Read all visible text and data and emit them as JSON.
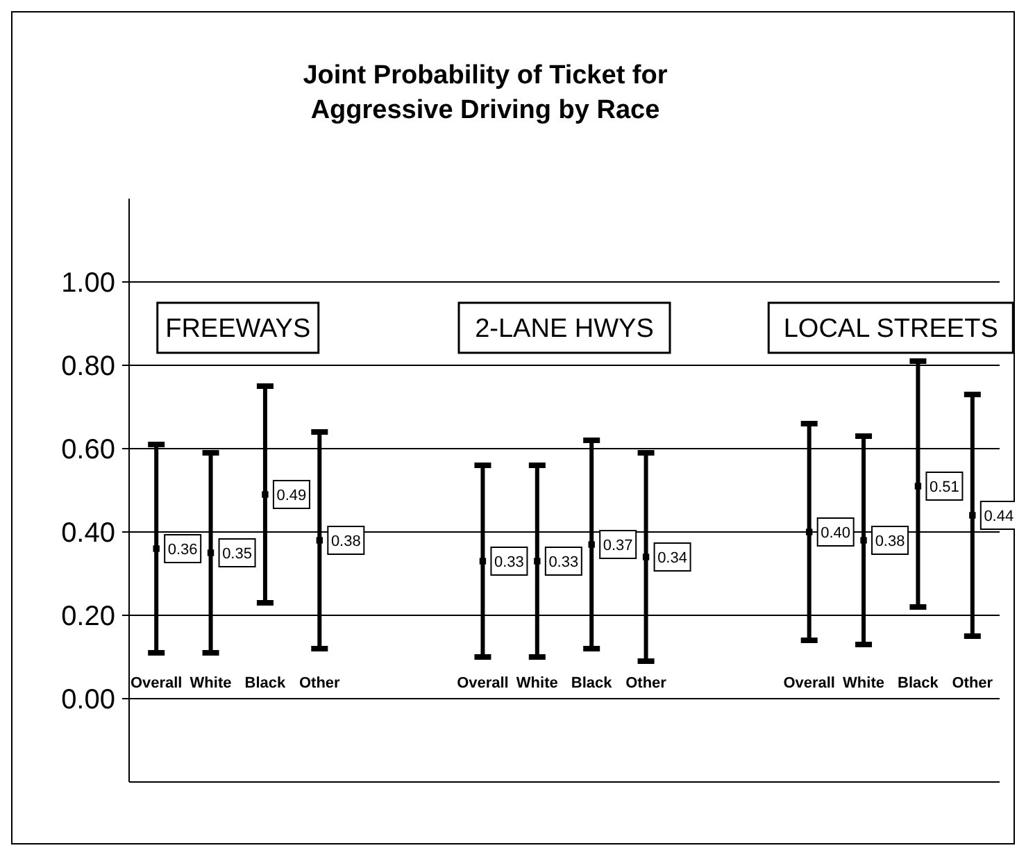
{
  "chart_data": {
    "type": "scatter",
    "title": "Joint Probability of Ticket for\nAggressive Driving by Race",
    "categories": [
      "Overall",
      "White",
      "Black",
      "Other",
      null,
      null,
      "Overall",
      "White",
      "Black",
      "Other",
      null,
      null,
      "Overall",
      "White",
      "Black",
      "Other"
    ],
    "values": [
      0.36,
      0.35,
      0.49,
      0.38,
      null,
      null,
      0.33,
      0.33,
      0.37,
      0.34,
      null,
      null,
      0.4,
      0.38,
      0.51,
      0.44
    ],
    "errors": [
      [
        0.11,
        0.61
      ],
      [
        0.11,
        0.59
      ],
      [
        0.23,
        0.75
      ],
      [
        0.12,
        0.64
      ],
      null,
      null,
      [
        0.1,
        0.56
      ],
      [
        0.1,
        0.56
      ],
      [
        0.12,
        0.62
      ],
      [
        0.09,
        0.59
      ],
      null,
      null,
      [
        0.14,
        0.66
      ],
      [
        0.13,
        0.63
      ],
      [
        0.22,
        0.81
      ],
      [
        0.15,
        0.73
      ]
    ],
    "value_labels": [
      "0.36",
      "0.35",
      "0.49",
      "0.38",
      null,
      null,
      "0.33",
      "0.33",
      "0.37",
      "0.34",
      null,
      null,
      "0.40",
      "0.38",
      "0.51",
      "0.44"
    ],
    "color": "#000000",
    "marker": "square",
    "annotations": [
      "FREEWAYS",
      "2-LANE HWYS",
      "LOCAL STREETS"
    ],
    "ylim": [
      -0.2,
      1.2
    ],
    "yticks": [
      {
        "value": 0,
        "label": "0.00"
      },
      {
        "value": 0.2,
        "label": "0.20"
      },
      {
        "value": 0.4,
        "label": "0.40"
      },
      {
        "value": 0.6,
        "label": "0.60"
      },
      {
        "value": 0.8,
        "label": "0.80"
      },
      {
        "value": 1,
        "label": "1.00"
      }
    ],
    "grid": "y"
  }
}
